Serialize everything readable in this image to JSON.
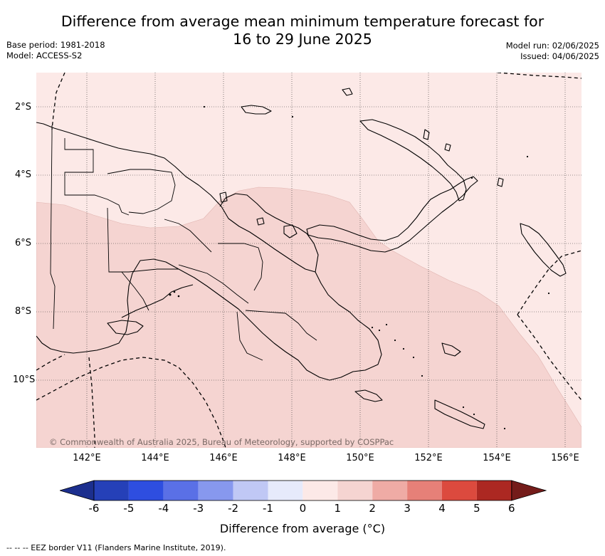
{
  "header": {
    "title_line1": "Difference from average mean minimum temperature forecast for",
    "title_line2": "16 to 29 June 2025",
    "base_period": "Base period: 1981-2018",
    "model": "Model: ACCESS-S2",
    "model_run": "Model run: 02/06/2025",
    "issued": "Issued: 04/06/2025"
  },
  "map": {
    "region": "Papua New Guinea",
    "lat_labels": [
      "2°S",
      "4°S",
      "6°S",
      "8°S",
      "10°S"
    ],
    "lon_labels": [
      "142°E",
      "144°E",
      "146°E",
      "148°E",
      "150°E",
      "152°E",
      "154°E",
      "156°E"
    ],
    "lat_range": [
      -12,
      -1
    ],
    "lon_range": [
      140.5,
      156.5
    ],
    "fill_colors": {
      "anomaly_0_to_1": "#fce9e7",
      "anomaly_1_to_2": "#f5d4d1"
    },
    "copyright": "© Commonwealth of Australia 2025, Bureau of Meteorology, supported by COSPPac"
  },
  "colorbar": {
    "title": "Difference from average (°C)",
    "ticks": [
      "-6",
      "-5",
      "-4",
      "-3",
      "-2",
      "-1",
      "0",
      "1",
      "2",
      "3",
      "4",
      "5",
      "6"
    ],
    "colors": [
      "#1c2f8e",
      "#2540b8",
      "#2e4ee0",
      "#5a70e6",
      "#8798ee",
      "#c0c8f5",
      "#e6eafb",
      "#fce9e7",
      "#f5d4d1",
      "#efaba5",
      "#e68078",
      "#dc4a3e",
      "#ac2822",
      "#741c1a"
    ]
  },
  "footer": {
    "legend": "-- -- -- EEZ border V11 (Flanders Marine Institute, 2019)."
  }
}
